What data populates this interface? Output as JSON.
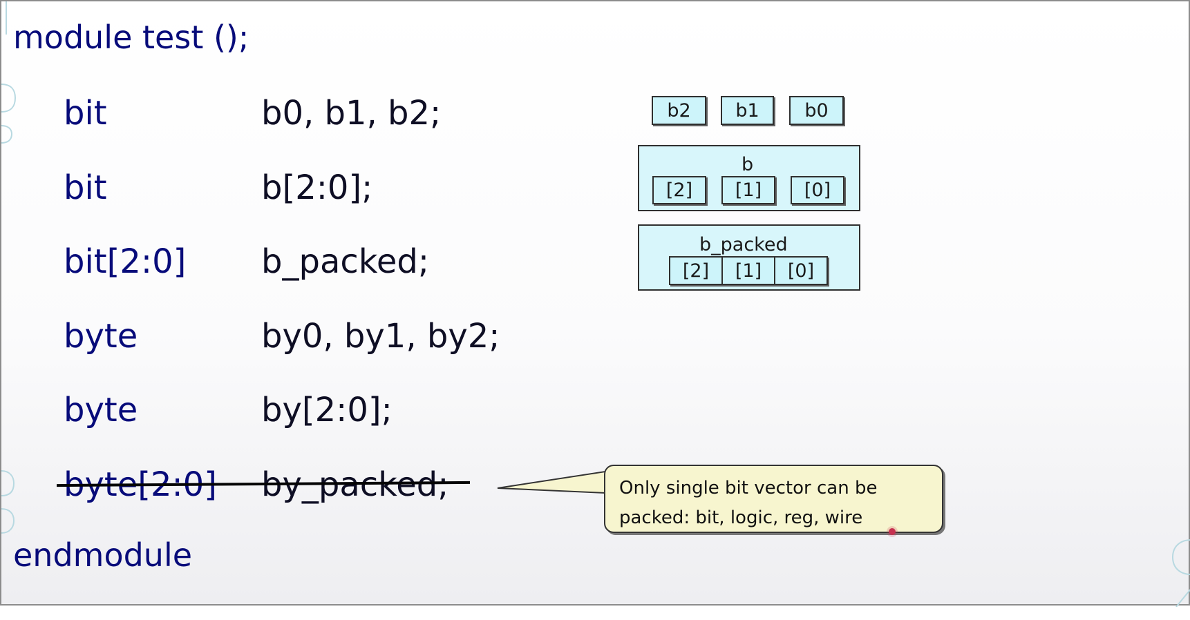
{
  "slide": {
    "module_header": "module test ();",
    "module_footer": "endmodule",
    "declarations": [
      {
        "type": "bit",
        "name": "b0, b1, b2;",
        "strikethrough": false
      },
      {
        "type": "bit",
        "name": "b[2:0];",
        "strikethrough": false
      },
      {
        "type": "bit[2:0]",
        "name": "b_packed;",
        "strikethrough": false
      },
      {
        "type": "byte",
        "name": "by0, by1, by2;",
        "strikethrough": false
      },
      {
        "type": "byte",
        "name": "by[2:0];",
        "strikethrough": false
      },
      {
        "type": "byte[2:0]",
        "name": "by_packed;",
        "strikethrough": true
      }
    ],
    "diagrams": {
      "separate_bits": [
        "b2",
        "b1",
        "b0"
      ],
      "unpacked_array": {
        "label": "b",
        "cells": [
          "[2]",
          "[1]",
          "[0]"
        ]
      },
      "packed_array": {
        "label": "b_packed",
        "cells": [
          "[2]",
          "[1]",
          "[0]"
        ]
      }
    },
    "callout": {
      "line1": "Only single bit vector can be",
      "line2": "packed: bit, logic, reg, wire"
    },
    "colors": {
      "keyword": "#070b7a",
      "box_fill": "#d8f6fb",
      "callout_fill": "#f7f5cf",
      "pointer": "#c6304f"
    }
  }
}
